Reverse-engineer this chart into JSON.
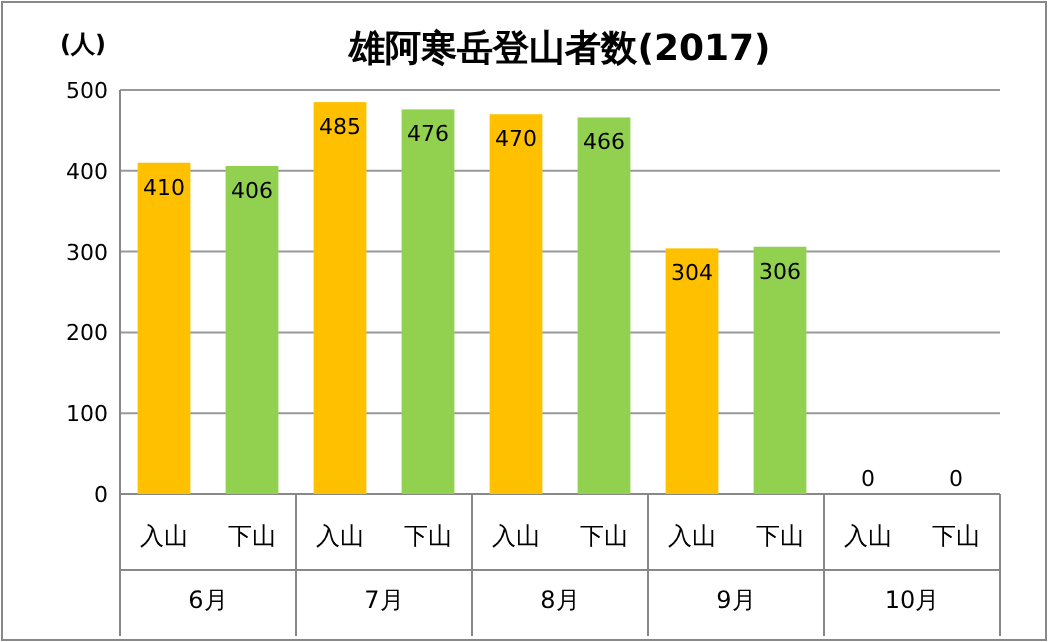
{
  "chart_data": {
    "type": "bar",
    "title": "雄阿寒岳登山者数(2017)",
    "ylabel": "(人)",
    "categories": [
      "入山",
      "下山",
      "入山",
      "下山",
      "入山",
      "下山",
      "入山",
      "下山",
      "入山",
      "下山"
    ],
    "values": [
      410,
      406,
      485,
      476,
      470,
      466,
      304,
      306,
      0,
      0
    ],
    "colors": [
      "#ffc000",
      "#92d050",
      "#ffc000",
      "#92d050",
      "#ffc000",
      "#92d050",
      "#ffc000",
      "#92d050",
      "#ffc000",
      "#92d050"
    ],
    "ylim": [
      0,
      500
    ],
    "yticks": [
      0,
      100,
      200,
      300,
      400,
      500
    ],
    "grid": "y",
    "data_labels": true,
    "annotations": [
      "6月",
      "7月",
      "8月",
      "9月",
      "10月"
    ]
  }
}
